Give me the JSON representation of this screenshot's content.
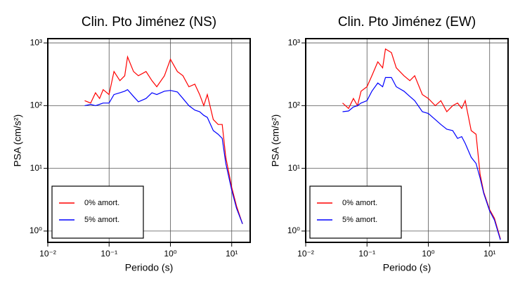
{
  "chart_data": [
    {
      "type": "line",
      "title": "Clin. Pto Jiménez (NS)",
      "x_label": "Periodo (s)",
      "y_label": "PSA (cm/s²)",
      "x_scale": "log",
      "y_scale": "log",
      "grid": true,
      "legend_position": "lower left",
      "xlim": [
        0.01,
        20
      ],
      "ylim": [
        0.66,
        1170
      ],
      "xticks": [
        {
          "value": 0.01,
          "label": "10⁻²"
        },
        {
          "value": 0.1,
          "label": "10⁻¹"
        },
        {
          "value": 1,
          "label": "10⁰"
        },
        {
          "value": 10,
          "label": "10¹"
        }
      ],
      "yticks": [
        {
          "value": 1,
          "label": "10⁰"
        },
        {
          "value": 10,
          "label": "10¹"
        },
        {
          "value": 100,
          "label": "10²"
        },
        {
          "value": 1000,
          "label": "10³"
        }
      ],
      "x": [
        0.04,
        0.05,
        0.06,
        0.07,
        0.08,
        0.1,
        0.12,
        0.15,
        0.18,
        0.2,
        0.25,
        0.3,
        0.4,
        0.5,
        0.6,
        0.8,
        1.0,
        1.3,
        1.6,
        2,
        2.5,
        3,
        3.5,
        4,
        5,
        6,
        7,
        8,
        10,
        12,
        15
      ],
      "series": [
        {
          "name": "0% amort.",
          "color": "#ff0000",
          "values": [
            120,
            110,
            160,
            130,
            180,
            150,
            350,
            250,
            300,
            600,
            350,
            300,
            350,
            250,
            200,
            300,
            550,
            350,
            300,
            200,
            220,
            150,
            100,
            150,
            60,
            50,
            50,
            15,
            5,
            2.5,
            1.3
          ]
        },
        {
          "name": "5% amort.",
          "color": "#0000ff",
          "values": [
            100,
            105,
            100,
            105,
            110,
            110,
            150,
            160,
            170,
            180,
            140,
            115,
            130,
            160,
            150,
            170,
            175,
            165,
            130,
            100,
            85,
            80,
            70,
            65,
            40,
            35,
            30,
            12,
            4.5,
            2.3,
            1.3
          ]
        }
      ]
    },
    {
      "type": "line",
      "title": "Clin. Pto Jiménez (EW)",
      "x_label": "Periodo (s)",
      "y_label": "PSA (cm/s²)",
      "x_scale": "log",
      "y_scale": "log",
      "grid": true,
      "legend_position": "lower left",
      "xlim": [
        0.01,
        20
      ],
      "ylim": [
        0.66,
        1170
      ],
      "xticks": [
        {
          "value": 0.01,
          "label": "10⁻²"
        },
        {
          "value": 0.1,
          "label": "10⁻¹"
        },
        {
          "value": 1,
          "label": "10⁰"
        },
        {
          "value": 10,
          "label": "10¹"
        }
      ],
      "yticks": [
        {
          "value": 1,
          "label": "10⁰"
        },
        {
          "value": 10,
          "label": "10¹"
        },
        {
          "value": 100,
          "label": "10²"
        },
        {
          "value": 1000,
          "label": "10³"
        }
      ],
      "x": [
        0.04,
        0.05,
        0.06,
        0.07,
        0.08,
        0.1,
        0.12,
        0.15,
        0.18,
        0.2,
        0.25,
        0.3,
        0.4,
        0.5,
        0.6,
        0.8,
        1.0,
        1.3,
        1.6,
        2,
        2.5,
        3,
        3.5,
        4,
        5,
        6,
        7,
        8,
        10,
        12,
        15
      ],
      "series": [
        {
          "name": "0% amort.",
          "color": "#ff0000",
          "values": [
            110,
            90,
            130,
            100,
            170,
            200,
            300,
            500,
            400,
            800,
            700,
            400,
            300,
            250,
            300,
            150,
            130,
            100,
            120,
            80,
            100,
            110,
            90,
            120,
            40,
            35,
            8,
            4.2,
            2.2,
            1.6,
            0.75
          ]
        },
        {
          "name": "5% amort.",
          "color": "#0000ff",
          "values": [
            80,
            82,
            95,
            100,
            110,
            120,
            170,
            230,
            200,
            280,
            280,
            200,
            170,
            140,
            120,
            80,
            75,
            60,
            50,
            42,
            40,
            30,
            32,
            25,
            15,
            12,
            7,
            4,
            2.1,
            1.5,
            0.72
          ]
        }
      ]
    }
  ]
}
